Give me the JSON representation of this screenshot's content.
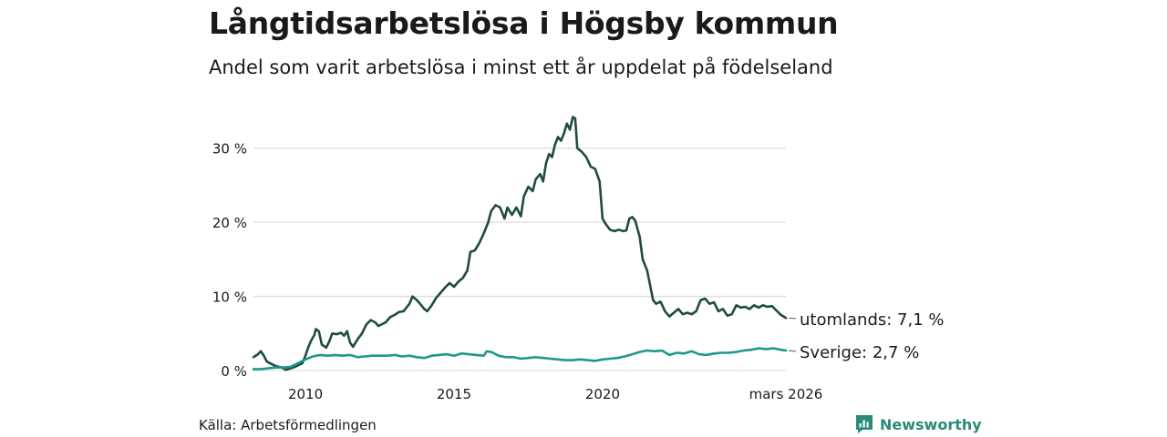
{
  "title": "Långtidsarbetslösa i Högsby kommun",
  "subtitle": "Andel som varit arbetslösa i minst ett år uppdelat på födelseland",
  "source": "Källa: Arbetsförmedlingen",
  "brand": "Newsworthy",
  "colors": {
    "utomlands": "#1f4a44",
    "sverige": "#1e9987",
    "grid": "#dedede",
    "brand": "#2a8a78"
  },
  "chart_data": {
    "type": "line",
    "title": "Långtidsarbetslösa i Högsby kommun",
    "ylabel": "",
    "xlabel": "",
    "xlim": [
      2008.25,
      2026.17
    ],
    "ylim": [
      0,
      35
    ],
    "y_ticks": [
      0,
      10,
      20,
      30
    ],
    "y_tick_labels": [
      "0 %",
      "10 %",
      "20 %",
      "30 %"
    ],
    "x_ticks": [
      2010,
      2015,
      2020,
      2026.17
    ],
    "x_tick_labels": [
      "2010",
      "2015",
      "2020",
      "mars 2026"
    ],
    "series": [
      {
        "name": "utomlands",
        "end_label": "utomlands: 7,1 %",
        "color": "#1f4a44",
        "points": [
          [
            2008.25,
            1.8
          ],
          [
            2008.4,
            2.2
          ],
          [
            2008.5,
            2.6
          ],
          [
            2008.6,
            2.0
          ],
          [
            2008.7,
            1.2
          ],
          [
            2008.85,
            0.9
          ],
          [
            2009.0,
            0.6
          ],
          [
            2009.2,
            0.4
          ],
          [
            2009.35,
            0.1
          ],
          [
            2009.5,
            0.3
          ],
          [
            2009.65,
            0.5
          ],
          [
            2009.8,
            0.8
          ],
          [
            2009.9,
            1.0
          ],
          [
            2010.0,
            2.0
          ],
          [
            2010.1,
            3.2
          ],
          [
            2010.2,
            4.1
          ],
          [
            2010.3,
            4.8
          ],
          [
            2010.35,
            5.6
          ],
          [
            2010.45,
            5.3
          ],
          [
            2010.55,
            3.5
          ],
          [
            2010.7,
            3.1
          ],
          [
            2010.8,
            3.9
          ],
          [
            2010.9,
            5.0
          ],
          [
            2011.05,
            4.9
          ],
          [
            2011.2,
            5.1
          ],
          [
            2011.3,
            4.7
          ],
          [
            2011.4,
            5.3
          ],
          [
            2011.5,
            3.8
          ],
          [
            2011.6,
            3.2
          ],
          [
            2011.75,
            4.2
          ],
          [
            2011.9,
            5.0
          ],
          [
            2012.05,
            6.2
          ],
          [
            2012.2,
            6.8
          ],
          [
            2012.35,
            6.5
          ],
          [
            2012.45,
            6.0
          ],
          [
            2012.55,
            6.2
          ],
          [
            2012.7,
            6.5
          ],
          [
            2012.85,
            7.2
          ],
          [
            2013.0,
            7.5
          ],
          [
            2013.15,
            7.9
          ],
          [
            2013.3,
            8.0
          ],
          [
            2013.4,
            8.5
          ],
          [
            2013.5,
            9.0
          ],
          [
            2013.6,
            10.0
          ],
          [
            2013.75,
            9.5
          ],
          [
            2013.9,
            8.8
          ],
          [
            2014.0,
            8.3
          ],
          [
            2014.1,
            8.0
          ],
          [
            2014.25,
            8.8
          ],
          [
            2014.4,
            9.8
          ],
          [
            2014.55,
            10.5
          ],
          [
            2014.7,
            11.2
          ],
          [
            2014.85,
            11.8
          ],
          [
            2015.0,
            11.3
          ],
          [
            2015.15,
            12.0
          ],
          [
            2015.3,
            12.5
          ],
          [
            2015.45,
            13.5
          ],
          [
            2015.55,
            16.0
          ],
          [
            2015.7,
            16.2
          ],
          [
            2015.85,
            17.2
          ],
          [
            2016.0,
            18.5
          ],
          [
            2016.15,
            20.0
          ],
          [
            2016.25,
            21.5
          ],
          [
            2016.4,
            22.3
          ],
          [
            2016.55,
            22.0
          ],
          [
            2016.7,
            20.5
          ],
          [
            2016.8,
            22.0
          ],
          [
            2016.95,
            21.0
          ],
          [
            2017.1,
            22.0
          ],
          [
            2017.25,
            20.8
          ],
          [
            2017.35,
            23.5
          ],
          [
            2017.5,
            24.8
          ],
          [
            2017.65,
            24.2
          ],
          [
            2017.75,
            25.8
          ],
          [
            2017.9,
            26.5
          ],
          [
            2018.0,
            25.5
          ],
          [
            2018.1,
            28.0
          ],
          [
            2018.2,
            29.2
          ],
          [
            2018.3,
            28.8
          ],
          [
            2018.4,
            30.5
          ],
          [
            2018.5,
            31.5
          ],
          [
            2018.6,
            31.0
          ],
          [
            2018.7,
            32.0
          ],
          [
            2018.8,
            33.3
          ],
          [
            2018.9,
            32.5
          ],
          [
            2019.0,
            34.2
          ],
          [
            2019.08,
            34.0
          ],
          [
            2019.15,
            30.0
          ],
          [
            2019.3,
            29.5
          ],
          [
            2019.45,
            28.8
          ],
          [
            2019.6,
            27.5
          ],
          [
            2019.75,
            27.2
          ],
          [
            2019.9,
            25.5
          ],
          [
            2020.0,
            20.5
          ],
          [
            2020.1,
            19.8
          ],
          [
            2020.25,
            19.0
          ],
          [
            2020.4,
            18.8
          ],
          [
            2020.55,
            19.0
          ],
          [
            2020.7,
            18.8
          ],
          [
            2020.8,
            18.9
          ],
          [
            2020.9,
            20.5
          ],
          [
            2021.0,
            20.7
          ],
          [
            2021.1,
            20.2
          ],
          [
            2021.25,
            18.0
          ],
          [
            2021.35,
            15.0
          ],
          [
            2021.5,
            13.5
          ],
          [
            2021.6,
            11.5
          ],
          [
            2021.7,
            9.5
          ],
          [
            2021.8,
            9.0
          ],
          [
            2021.95,
            9.3
          ],
          [
            2022.1,
            8.0
          ],
          [
            2022.25,
            7.3
          ],
          [
            2022.4,
            7.8
          ],
          [
            2022.55,
            8.3
          ],
          [
            2022.7,
            7.6
          ],
          [
            2022.85,
            7.8
          ],
          [
            2023.0,
            7.6
          ],
          [
            2023.15,
            8.0
          ],
          [
            2023.3,
            9.5
          ],
          [
            2023.45,
            9.7
          ],
          [
            2023.6,
            9.0
          ],
          [
            2023.75,
            9.2
          ],
          [
            2023.9,
            8.0
          ],
          [
            2024.05,
            8.3
          ],
          [
            2024.2,
            7.4
          ],
          [
            2024.35,
            7.6
          ],
          [
            2024.5,
            8.8
          ],
          [
            2024.65,
            8.5
          ],
          [
            2024.8,
            8.6
          ],
          [
            2024.95,
            8.3
          ],
          [
            2025.1,
            8.8
          ],
          [
            2025.25,
            8.5
          ],
          [
            2025.4,
            8.8
          ],
          [
            2025.55,
            8.6
          ],
          [
            2025.7,
            8.7
          ],
          [
            2025.85,
            8.1
          ],
          [
            2026.0,
            7.5
          ],
          [
            2026.17,
            7.1
          ]
        ]
      },
      {
        "name": "Sverige",
        "end_label": "Sverige: 2,7 %",
        "color": "#1e9987",
        "points": [
          [
            2008.25,
            0.2
          ],
          [
            2008.5,
            0.2
          ],
          [
            2008.75,
            0.3
          ],
          [
            2009.0,
            0.4
          ],
          [
            2009.25,
            0.4
          ],
          [
            2009.5,
            0.5
          ],
          [
            2009.75,
            1.0
          ],
          [
            2010.0,
            1.5
          ],
          [
            2010.25,
            1.9
          ],
          [
            2010.5,
            2.1
          ],
          [
            2010.75,
            2.0
          ],
          [
            2011.0,
            2.1
          ],
          [
            2011.25,
            2.0
          ],
          [
            2011.5,
            2.1
          ],
          [
            2011.75,
            1.8
          ],
          [
            2012.0,
            1.9
          ],
          [
            2012.25,
            2.0
          ],
          [
            2012.5,
            2.0
          ],
          [
            2012.75,
            2.0
          ],
          [
            2013.0,
            2.1
          ],
          [
            2013.25,
            1.9
          ],
          [
            2013.5,
            2.0
          ],
          [
            2013.75,
            1.8
          ],
          [
            2014.0,
            1.7
          ],
          [
            2014.25,
            2.0
          ],
          [
            2014.5,
            2.1
          ],
          [
            2014.75,
            2.2
          ],
          [
            2015.0,
            2.0
          ],
          [
            2015.25,
            2.3
          ],
          [
            2015.5,
            2.2
          ],
          [
            2015.75,
            2.1
          ],
          [
            2016.0,
            2.0
          ],
          [
            2016.1,
            2.6
          ],
          [
            2016.25,
            2.5
          ],
          [
            2016.5,
            2.0
          ],
          [
            2016.75,
            1.8
          ],
          [
            2017.0,
            1.8
          ],
          [
            2017.25,
            1.6
          ],
          [
            2017.5,
            1.7
          ],
          [
            2017.75,
            1.8
          ],
          [
            2018.0,
            1.7
          ],
          [
            2018.25,
            1.6
          ],
          [
            2018.5,
            1.5
          ],
          [
            2018.75,
            1.4
          ],
          [
            2019.0,
            1.4
          ],
          [
            2019.25,
            1.5
          ],
          [
            2019.5,
            1.4
          ],
          [
            2019.75,
            1.3
          ],
          [
            2020.0,
            1.5
          ],
          [
            2020.25,
            1.6
          ],
          [
            2020.5,
            1.7
          ],
          [
            2020.75,
            1.9
          ],
          [
            2021.0,
            2.2
          ],
          [
            2021.25,
            2.5
          ],
          [
            2021.5,
            2.7
          ],
          [
            2021.75,
            2.6
          ],
          [
            2022.0,
            2.7
          ],
          [
            2022.25,
            2.1
          ],
          [
            2022.5,
            2.4
          ],
          [
            2022.75,
            2.3
          ],
          [
            2023.0,
            2.6
          ],
          [
            2023.25,
            2.2
          ],
          [
            2023.5,
            2.1
          ],
          [
            2023.75,
            2.3
          ],
          [
            2024.0,
            2.4
          ],
          [
            2024.25,
            2.4
          ],
          [
            2024.5,
            2.5
          ],
          [
            2024.75,
            2.7
          ],
          [
            2025.0,
            2.8
          ],
          [
            2025.25,
            3.0
          ],
          [
            2025.5,
            2.9
          ],
          [
            2025.75,
            3.0
          ],
          [
            2026.0,
            2.8
          ],
          [
            2026.17,
            2.7
          ]
        ]
      }
    ]
  }
}
